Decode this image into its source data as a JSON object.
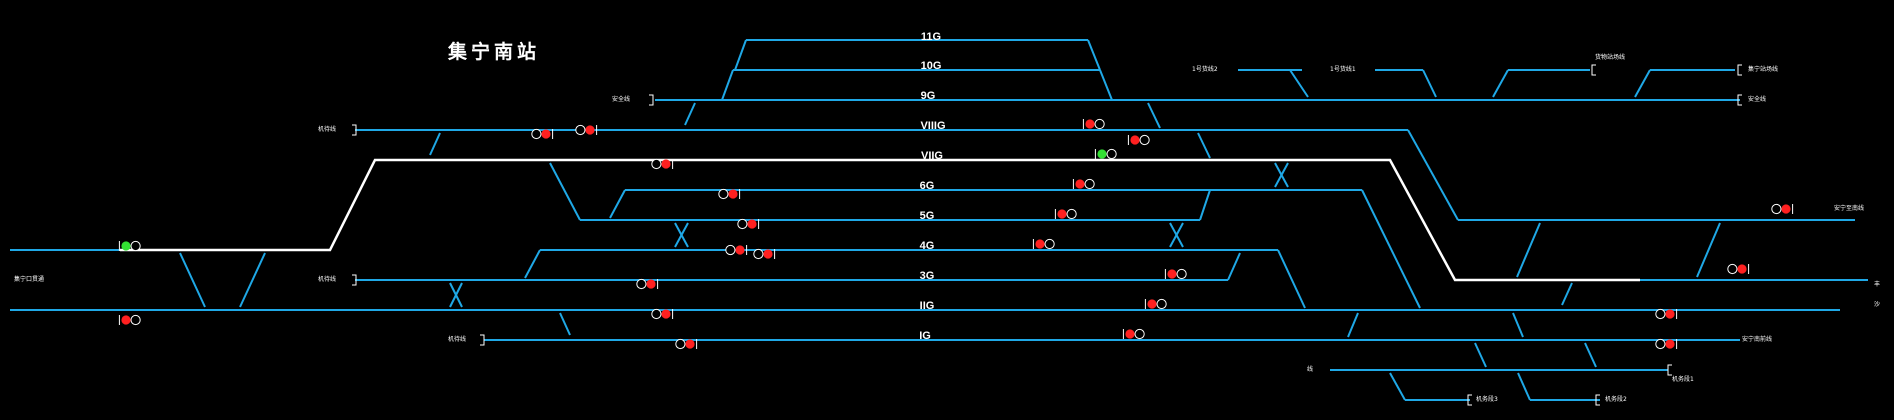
{
  "station": {
    "title": "集宁南站"
  },
  "colors": {
    "track": "#1fa8e6",
    "route": "#ffffff",
    "background": "#000000",
    "signal_red": "#ff2020",
    "signal_green": "#33e033"
  },
  "tracks": [
    {
      "label": "11G"
    },
    {
      "label": "10G"
    },
    {
      "label": "9G"
    },
    {
      "label": "VIIIG"
    },
    {
      "label": "VIIG"
    },
    {
      "label": "6G"
    },
    {
      "label": "5G"
    },
    {
      "label": "4G"
    },
    {
      "label": "3G"
    },
    {
      "label": "IIG"
    },
    {
      "label": "IG"
    }
  ],
  "side_labels": {
    "jtl_left": "安全线",
    "sidings_a": "机待线",
    "sidings_b": "机待线",
    "sidings_c": "机待线",
    "left_main": "集宁口贯通",
    "ref1": "1号货线2",
    "ref2": "1号货线1",
    "ref3": "货物站场线",
    "ref4": "集宁站场线",
    "ref5": "安全线",
    "right_line1": "安宁至南线",
    "right_line2": "安宁南前线",
    "bottom_a": "机务段1",
    "bottom_b": "机务段2",
    "bottom_c": "机务段3",
    "bottom_d": "线",
    "right_edge1": "丰",
    "right_edge2": "沙"
  },
  "signals": [
    {
      "id": "s1",
      "aspect": "green"
    },
    {
      "id": "s2",
      "aspect": "red"
    },
    {
      "id": "s3",
      "aspect": "red"
    },
    {
      "id": "s4",
      "aspect": "red"
    },
    {
      "id": "s5",
      "aspect": "red"
    },
    {
      "id": "s6",
      "aspect": "red"
    },
    {
      "id": "s7",
      "aspect": "red"
    },
    {
      "id": "s8",
      "aspect": "red"
    },
    {
      "id": "s9",
      "aspect": "red"
    },
    {
      "id": "s10",
      "aspect": "red"
    },
    {
      "id": "s11",
      "aspect": "red"
    },
    {
      "id": "s12",
      "aspect": "green"
    },
    {
      "id": "s13",
      "aspect": "red"
    },
    {
      "id": "s14",
      "aspect": "red"
    },
    {
      "id": "s15",
      "aspect": "red"
    },
    {
      "id": "s16",
      "aspect": "red"
    },
    {
      "id": "s17",
      "aspect": "red"
    },
    {
      "id": "s18",
      "aspect": "red"
    },
    {
      "id": "s19",
      "aspect": "red"
    },
    {
      "id": "s20",
      "aspect": "red"
    },
    {
      "id": "s21",
      "aspect": "red"
    },
    {
      "id": "s22",
      "aspect": "red"
    },
    {
      "id": "s23",
      "aspect": "red"
    },
    {
      "id": "s24",
      "aspect": "red"
    },
    {
      "id": "s25",
      "aspect": "red"
    }
  ]
}
